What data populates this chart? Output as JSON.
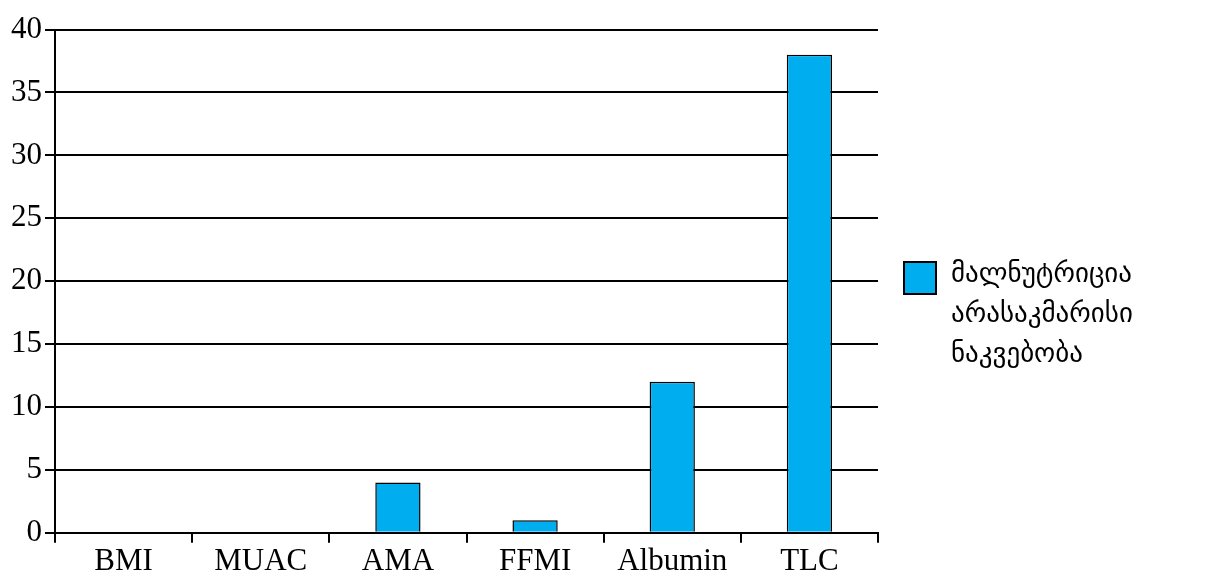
{
  "chart_data": {
    "type": "bar",
    "categories": [
      "BMI",
      "MUAC",
      "AMA",
      "FFMI",
      "Albumin",
      "TLC"
    ],
    "series": [
      {
        "name": "მალნუტრიცია არასაკმარისი ნაკვებობა",
        "color": "#00aeef",
        "values": [
          0,
          0,
          4,
          1,
          12,
          38
        ]
      }
    ],
    "ylim": [
      0,
      40
    ],
    "yticks": [
      0,
      5,
      10,
      15,
      20,
      25,
      30,
      35,
      40
    ],
    "grid": "y",
    "legend": "right"
  }
}
